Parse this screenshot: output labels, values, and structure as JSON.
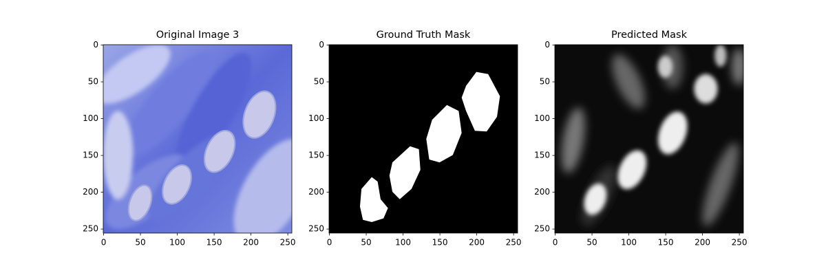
{
  "chart_data": [
    {
      "type": "image",
      "title": "Original Image 3",
      "xlim": [
        -0.5,
        255.5
      ],
      "ylim": [
        255.5,
        -0.5
      ],
      "xticks": [
        0,
        50,
        100,
        150,
        200,
        250
      ],
      "yticks": [
        0,
        50,
        100,
        150,
        200,
        250
      ]
    },
    {
      "type": "image",
      "title": "Ground Truth Mask",
      "xlim": [
        -0.5,
        255.5
      ],
      "ylim": [
        255.5,
        -0.5
      ],
      "xticks": [
        0,
        50,
        100,
        150,
        200,
        250
      ],
      "yticks": [
        0,
        50,
        100,
        150,
        200,
        250
      ]
    },
    {
      "type": "image",
      "title": "Predicted Mask",
      "xlim": [
        -0.5,
        255.5
      ],
      "ylim": [
        255.5,
        -0.5
      ],
      "xticks": [
        0,
        50,
        100,
        150,
        200,
        250
      ],
      "yticks": [
        0,
        50,
        100,
        150,
        200,
        250
      ]
    }
  ]
}
